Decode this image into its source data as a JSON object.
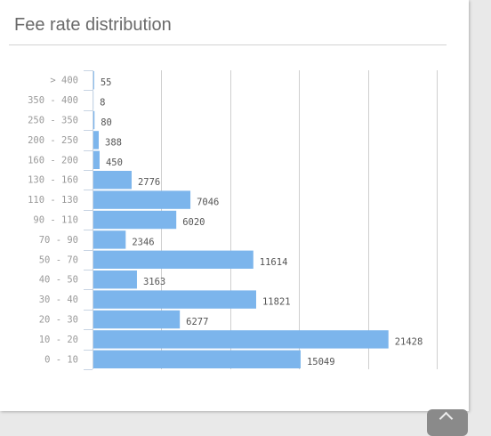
{
  "page": {
    "title": "Fee rate distribution"
  },
  "chart_data": {
    "type": "bar",
    "orientation": "horizontal",
    "title": "Fee rate distribution",
    "categories": [
      "> 400",
      "350 - 400",
      "250 - 350",
      "200 - 250",
      "160 - 200",
      "130 - 160",
      "110 - 130",
      "90 - 110",
      "70 - 90",
      "50 - 70",
      "40 - 50",
      "30 - 40",
      "20 - 30",
      "10 - 20",
      "0 - 10"
    ],
    "values": [
      55,
      8,
      80,
      388,
      450,
      2776,
      7046,
      6020,
      2346,
      11614,
      3163,
      11821,
      6277,
      21428,
      15049
    ],
    "xlim": [
      0,
      25000
    ],
    "x_gridlines": [
      5000,
      10000,
      15000,
      20000,
      25000
    ],
    "grid": true,
    "data_labels": true,
    "bar_color": "#7cb5ec"
  },
  "controls": {
    "scroll_top_icon": "chevron-up-icon"
  }
}
